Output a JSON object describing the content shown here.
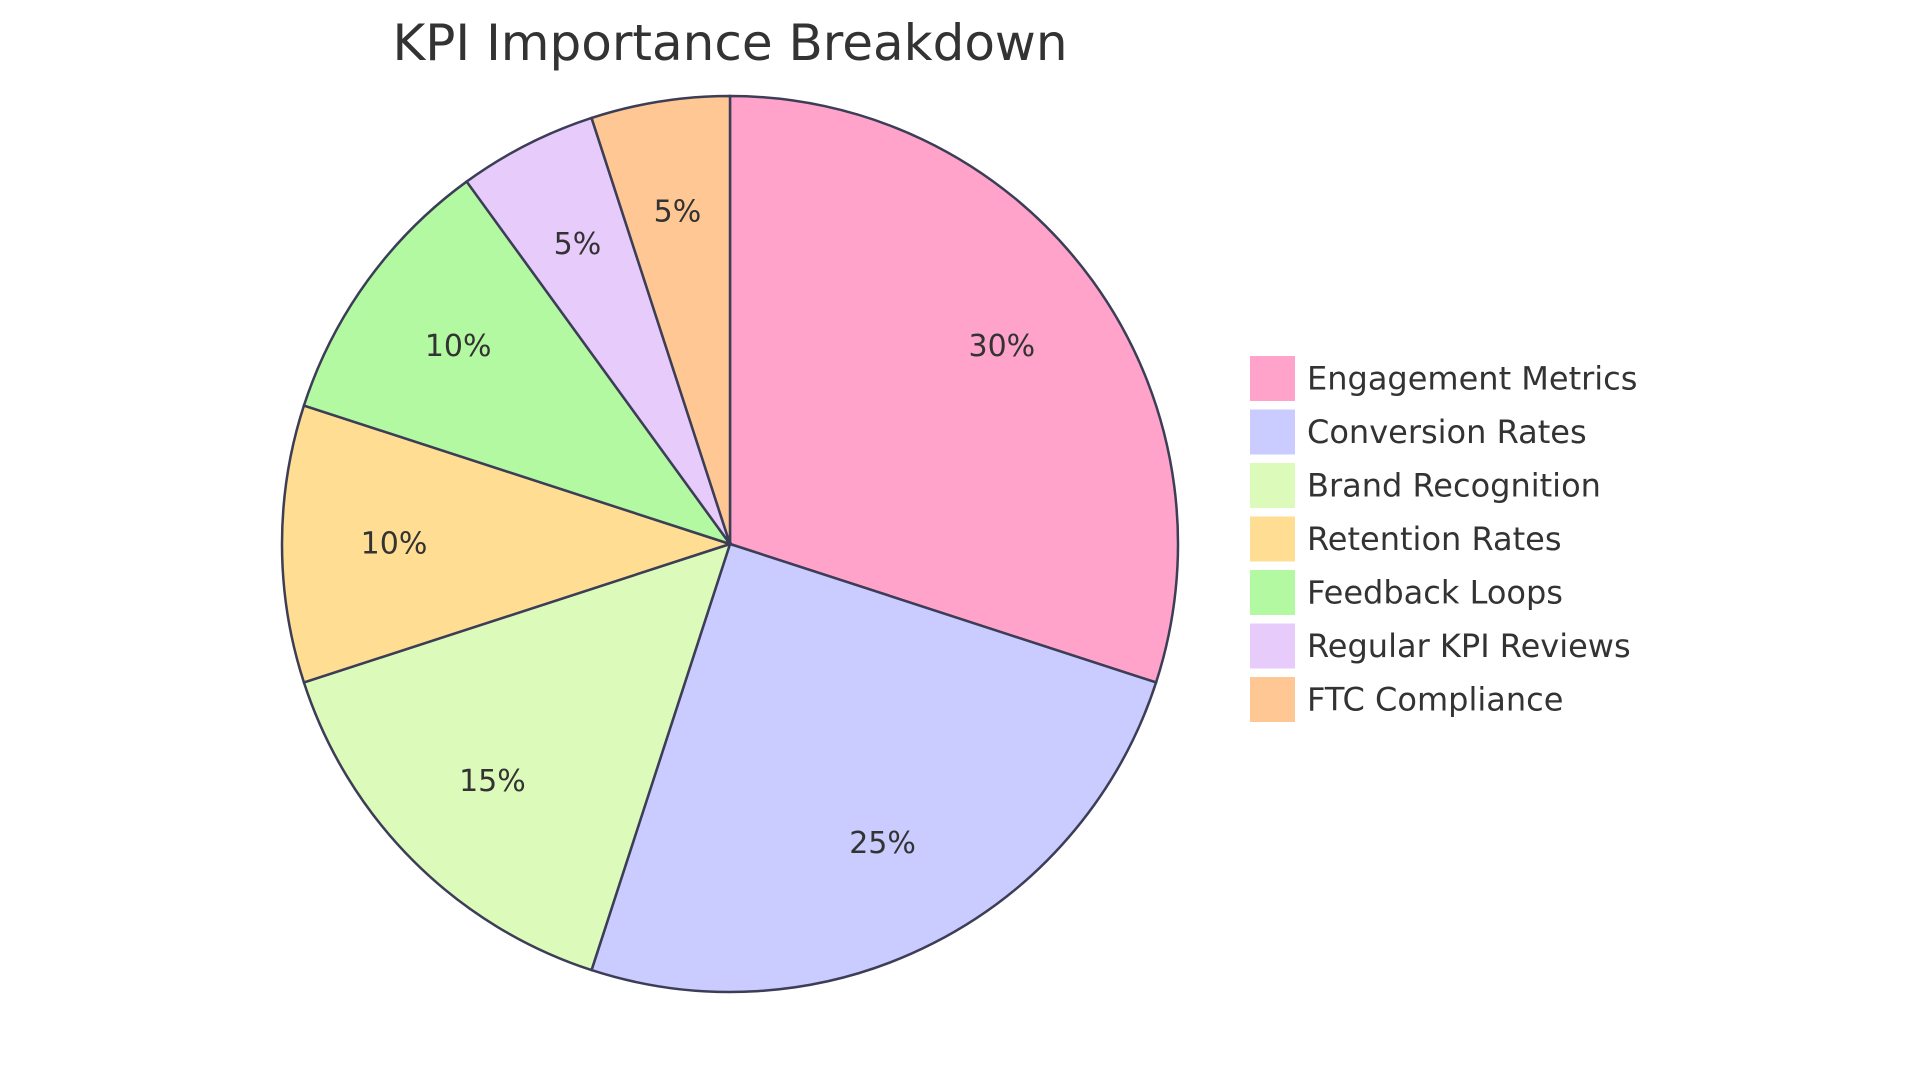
{
  "chart_data": {
    "type": "pie",
    "title": "KPI Importance Breakdown",
    "legend_position": "right",
    "slices": [
      {
        "label": "Engagement Metrics",
        "value": 30,
        "display": "30%",
        "color": "#FFA3CB"
      },
      {
        "label": "Conversion Rates",
        "value": 25,
        "display": "25%",
        "color": "#CACBFE"
      },
      {
        "label": "Brand Recognition",
        "value": 15,
        "display": "15%",
        "color": "#DCFABA"
      },
      {
        "label": "Retention Rates",
        "value": 10,
        "display": "10%",
        "color": "#FFDE94"
      },
      {
        "label": "Feedback Loops",
        "value": 10,
        "display": "10%",
        "color": "#B3F9A1"
      },
      {
        "label": "Regular KPI Reviews",
        "value": 5,
        "display": "5%",
        "color": "#E6CBFB"
      },
      {
        "label": "FTC Compliance",
        "value": 5,
        "display": "5%",
        "color": "#FFC794"
      }
    ],
    "stroke_color": "#3C3D56"
  }
}
